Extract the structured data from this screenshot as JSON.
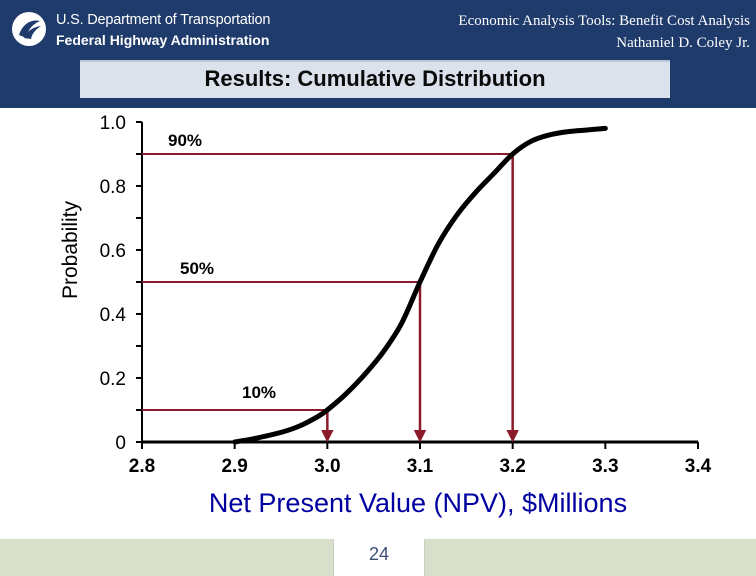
{
  "header": {
    "logo_line1": "U.S. Department of Transportation",
    "logo_line2": "Federal Highway Administration",
    "right_line1": "Economic Analysis Tools: Benefit Cost Analysis",
    "right_line2": "Nathaniel D. Coley Jr.",
    "logo_icon": "dot-shield-icon"
  },
  "slide_title": "Results: Cumulative Distribution",
  "chart_data": {
    "type": "line",
    "title": "",
    "xlabel": "Net Present Value (NPV), $Millions",
    "ylabel": "Probability",
    "xlim": [
      2.8,
      3.4
    ],
    "ylim": [
      0,
      1.0
    ],
    "x_ticks": [
      2.8,
      2.9,
      3.0,
      3.1,
      3.2,
      3.3,
      3.4
    ],
    "x_tick_labels": [
      "2.8",
      "2.9",
      "3.0",
      "3.1",
      "3.2",
      "3.3",
      "3.4"
    ],
    "y_ticks": [
      0,
      0.2,
      0.4,
      0.6,
      0.8,
      1.0
    ],
    "y_tick_labels": [
      "0",
      "0.2",
      "0.4",
      "0.6",
      "0.8",
      "1.0"
    ],
    "series": [
      {
        "x": [
          2.9,
          2.92,
          2.95,
          2.97,
          2.99,
          3.0,
          3.02,
          3.04,
          3.06,
          3.08,
          3.1,
          3.12,
          3.14,
          3.16,
          3.18,
          3.2,
          3.22,
          3.24,
          3.26,
          3.28,
          3.3
        ],
        "values": [
          0.0,
          0.01,
          0.03,
          0.05,
          0.08,
          0.1,
          0.15,
          0.21,
          0.28,
          0.37,
          0.5,
          0.62,
          0.71,
          0.78,
          0.84,
          0.9,
          0.94,
          0.96,
          0.97,
          0.975,
          0.98
        ]
      }
    ],
    "annotations": [
      {
        "label": "90%",
        "probability": 0.9,
        "npv": 3.2
      },
      {
        "label": "50%",
        "probability": 0.5,
        "npv": 3.1
      },
      {
        "label": "10%",
        "probability": 0.1,
        "npv": 3.0
      }
    ],
    "annotation_color": "#8b1a2b",
    "line_color": "#000000",
    "grid": false
  },
  "footer": {
    "page_number": "24"
  },
  "colors": {
    "header_bg": "#1f3b6b",
    "title_bar_bg": "#dbe2ec",
    "footer_bg": "#d8e0cc"
  }
}
